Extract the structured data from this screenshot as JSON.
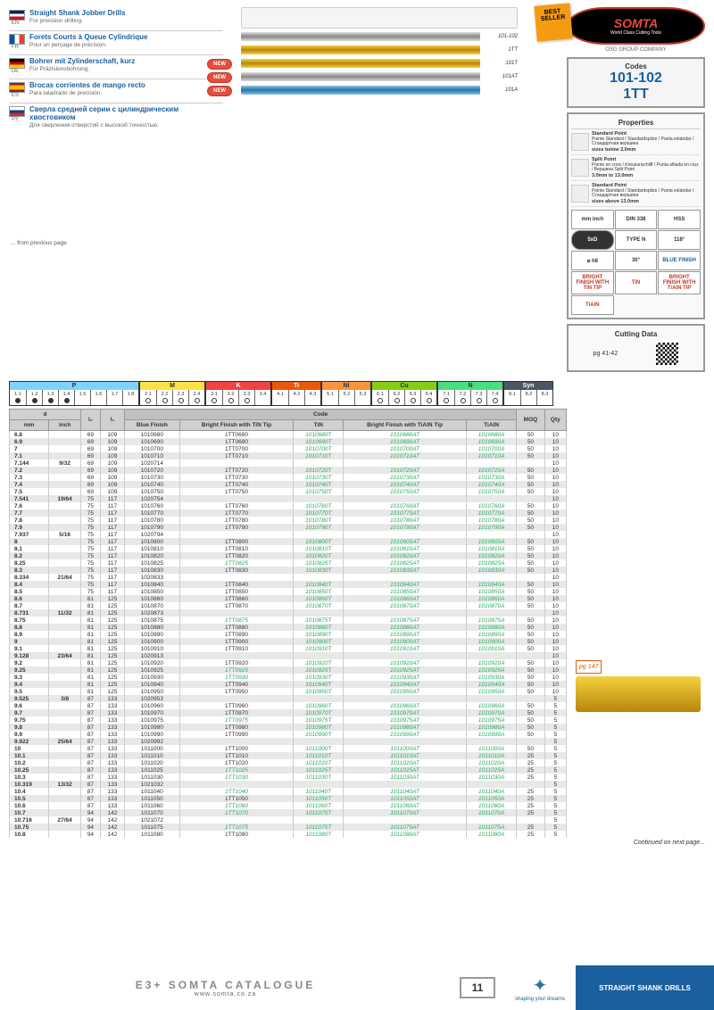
{
  "langs": [
    {
      "code": "EN",
      "flag": "en",
      "title": "Straight Shank Jobber Drills",
      "sub": "For precision drilling."
    },
    {
      "code": "FR",
      "flag": "fr",
      "title": "Forets Courts à Queue Cylindrique",
      "sub": "Pour un perçage de précision."
    },
    {
      "code": "DE",
      "flag": "de",
      "title": "Bohrer mit Zylinderschaft, kurz",
      "sub": "Für Präzisionsbohrung."
    },
    {
      "code": "ES",
      "flag": "es",
      "title": "Brocas corrientes de mango recto",
      "sub": "Para taladrado de precisión."
    },
    {
      "code": "РУ",
      "flag": "ru",
      "title": "Сверла средней серии с цилиндрическим хвостовиком",
      "sub": "Для сверления отверстий с высокой точностью."
    }
  ],
  "drills": [
    {
      "cls": "silver",
      "label": "101-102",
      "new": false,
      "diagram": true
    },
    {
      "cls": "gold",
      "label": "1TT",
      "new": false
    },
    {
      "cls": "gold",
      "label": "101T",
      "new": true
    },
    {
      "cls": "silver",
      "label": "101AT",
      "new": true
    },
    {
      "cls": "blue",
      "label": "101A",
      "new": true
    }
  ],
  "bestSeller": "BEST SELLER",
  "brand": "SOMTA",
  "brandTag": "World Class Cutting Tools",
  "osg": "OSG GROUP COMPANY",
  "codes": {
    "lbl": "Codes",
    "v1": "101-102",
    "v2": "1TT"
  },
  "propsHdr": "Properties",
  "pointTypes": [
    {
      "t": "Standard Point",
      "s": "Pointe Standard / Standardspitze / Punta estándar / Стандартная вершина",
      "r": "sizes below 3.0mm"
    },
    {
      "t": "Split Point",
      "s": "Pointe en croix / Kreuzanschliff / Punta afilada en cruz / Вершина Split Point",
      "r": "3.0mm to 13.0mm"
    },
    {
      "t": "Standard Point",
      "s": "Pointe Standard / Standardspitze / Punta estándar / Стандартная вершина",
      "r": "sizes above 13.0mm"
    }
  ],
  "propGrid": [
    [
      "mm inch",
      "DIN 338",
      "HSS"
    ],
    [
      "5xD",
      "TYPE N",
      "118°"
    ],
    [
      "⌀ h8",
      "30°",
      "BLUE FINISH"
    ],
    [
      "BRIGHT FINISH WITH TiN TIP",
      "TiN",
      "BRIGHT FINISH WITH TiAlN TIP"
    ],
    [
      "TiAlN",
      "",
      ""
    ]
  ],
  "propGridCls": [
    [
      "",
      "",
      ""
    ],
    [
      "dark",
      "",
      ""
    ],
    [
      "",
      "",
      "blue"
    ],
    [
      "red",
      "red",
      "red"
    ],
    [
      "red",
      "",
      ""
    ]
  ],
  "cutting": {
    "hdr": "Cutting Data",
    "pg": "pg 41-42"
  },
  "pgRef": "pg 147",
  "materials": [
    {
      "n": "P",
      "c": "P",
      "cells": [
        "1.1",
        "1.2",
        "1.3",
        "1.4",
        "1.5",
        "1.6",
        "1.7",
        "1.8"
      ],
      "fill": [
        1,
        1,
        1,
        1,
        0,
        0,
        0,
        0
      ]
    },
    {
      "n": "M",
      "c": "M",
      "cells": [
        "2.1",
        "2.2",
        "2.3",
        "2.4"
      ],
      "fill": [
        0,
        0,
        0,
        0
      ],
      "ring": [
        1,
        1,
        1,
        1
      ]
    },
    {
      "n": "K",
      "c": "K",
      "cells": [
        "3.1",
        "3.2",
        "3.3",
        "3.4"
      ],
      "fill": [
        0,
        0,
        0,
        0
      ],
      "ring": [
        1,
        1,
        1,
        0
      ]
    },
    {
      "n": "Ti",
      "c": "Ti",
      "cells": [
        "4.1",
        "4.2",
        "4.3"
      ],
      "fill": [
        0,
        0,
        0
      ]
    },
    {
      "n": "Ni",
      "c": "Ni",
      "cells": [
        "5.1",
        "5.2",
        "5.3"
      ],
      "fill": [
        0,
        0,
        0
      ]
    },
    {
      "n": "Cu",
      "c": "Cu",
      "cells": [
        "6.1",
        "6.2",
        "6.3",
        "6.4"
      ],
      "fill": [
        0,
        0,
        0,
        0
      ],
      "ring": [
        1,
        1,
        1,
        1
      ]
    },
    {
      "n": "N",
      "c": "N",
      "cells": [
        "7.1",
        "7.2",
        "7.3",
        "7.4"
      ],
      "fill": [
        0,
        0,
        0,
        0
      ],
      "ring": [
        1,
        1,
        1,
        1
      ]
    },
    {
      "n": "Syn",
      "c": "Syn",
      "cells": [
        "8.1",
        "8.2",
        "8.3"
      ],
      "fill": [
        0,
        0,
        0
      ]
    }
  ],
  "tableHdr": {
    "d": "d",
    "l2": "l₂",
    "l1": "l₁",
    "code": "Code",
    "moq": "MOQ",
    "qty": "Qty",
    "mm": "mm",
    "inch": "inch",
    "c1": "Blue Finish",
    "c2": "Bright Finish with TiN Tip",
    "c3": "TiN",
    "c4": "Bright Finish with TiAlN Tip",
    "c5": "TiAlN"
  },
  "prev": "... from previous page",
  "cont": "Continued on next page...",
  "rows": [
    {
      "mm": "6.8",
      "inch": "",
      "l2": 69,
      "l1": 109,
      "c1": "1010680",
      "c2": "1TT0680",
      "c3": "1010680T",
      "c4": "1010680AT",
      "c5": "1010680A",
      "moq": 50,
      "qty": 10
    },
    {
      "mm": "6.9",
      "inch": "",
      "l2": 69,
      "l1": 109,
      "c1": "1010690",
      "c2": "1TT0690",
      "c3": "1010690T",
      "c4": "1010690AT",
      "c5": "1010690A",
      "moq": 50,
      "qty": 10
    },
    {
      "mm": "7",
      "inch": "",
      "l2": 69,
      "l1": 109,
      "c1": "1010700",
      "c2": "1TT0700",
      "c3": "1010700T",
      "c4": "1010700AT",
      "c5": "1010700A",
      "moq": 50,
      "qty": 10
    },
    {
      "mm": "7.1",
      "inch": "",
      "l2": 69,
      "l1": 109,
      "c1": "1010710",
      "c2": "1TT0710",
      "c3": "1010710T",
      "c4": "1010710AT",
      "c5": "1010710A",
      "moq": 50,
      "qty": 10
    },
    {
      "mm": "7.144",
      "inch": "9/32",
      "l2": 69,
      "l1": 109,
      "c1": "1020714",
      "c2": "",
      "c3": "",
      "c4": "",
      "c5": "",
      "moq": "",
      "qty": 10
    },
    {
      "mm": "7.2",
      "inch": "",
      "l2": 69,
      "l1": 109,
      "c1": "1010720",
      "c2": "1TT0720",
      "c3": "1010720T",
      "c4": "1010720AT",
      "c5": "1010720A",
      "moq": 50,
      "qty": 10
    },
    {
      "mm": "7.3",
      "inch": "",
      "l2": 69,
      "l1": 109,
      "c1": "1010730",
      "c2": "1TT0730",
      "c3": "1010730T",
      "c4": "1010730AT",
      "c5": "1010730A",
      "moq": 50,
      "qty": 10
    },
    {
      "mm": "7.4",
      "inch": "",
      "l2": 69,
      "l1": 109,
      "c1": "1010740",
      "c2": "1TT0740",
      "c3": "1010740T",
      "c4": "1010740AT",
      "c5": "1010740A",
      "moq": 50,
      "qty": 10
    },
    {
      "mm": "7.5",
      "inch": "",
      "l2": 69,
      "l1": 109,
      "c1": "1010750",
      "c2": "1TT0750",
      "c3": "1010750T",
      "c4": "1010750AT",
      "c5": "1010750A",
      "moq": 50,
      "qty": 10
    },
    {
      "mm": "7.541",
      "inch": "19/64",
      "l2": 75,
      "l1": 117,
      "c1": "1020754",
      "c2": "",
      "c3": "",
      "c4": "",
      "c5": "",
      "moq": "",
      "qty": 10
    },
    {
      "mm": "7.6",
      "inch": "",
      "l2": 75,
      "l1": 117,
      "c1": "1010760",
      "c2": "1TT0760",
      "c3": "1010760T",
      "c4": "1010760AT",
      "c5": "1010760A",
      "moq": 50,
      "qty": 10
    },
    {
      "mm": "7.7",
      "inch": "",
      "l2": 75,
      "l1": 117,
      "c1": "1010770",
      "c2": "1TT0770",
      "c3": "1010770T",
      "c4": "1010770AT",
      "c5": "1010770A",
      "moq": 50,
      "qty": 10
    },
    {
      "mm": "7.8",
      "inch": "",
      "l2": 75,
      "l1": 117,
      "c1": "1010780",
      "c2": "1TT0780",
      "c3": "1010780T",
      "c4": "1010780AT",
      "c5": "1010780A",
      "moq": 50,
      "qty": 10
    },
    {
      "mm": "7.9",
      "inch": "",
      "l2": 75,
      "l1": 117,
      "c1": "1010790",
      "c2": "1TT0790",
      "c3": "1010790T",
      "c4": "1010790AT",
      "c5": "1010790A",
      "moq": 50,
      "qty": 10
    },
    {
      "mm": "7.937",
      "inch": "5/16",
      "l2": 75,
      "l1": 117,
      "c1": "1020794",
      "c2": "",
      "c3": "",
      "c4": "",
      "c5": "",
      "moq": "",
      "qty": 10
    },
    {
      "mm": "8",
      "inch": "",
      "l2": 75,
      "l1": 117,
      "c1": "1010800",
      "c2": "1TT0800",
      "c3": "1010800T",
      "c4": "1010800AT",
      "c5": "1010800A",
      "moq": 50,
      "qty": 10
    },
    {
      "mm": "8.1",
      "inch": "",
      "l2": 75,
      "l1": 117,
      "c1": "1010810",
      "c2": "1TT0810",
      "c3": "1010810T",
      "c4": "1010810AT",
      "c5": "1010810A",
      "moq": 50,
      "qty": 10
    },
    {
      "mm": "8.2",
      "inch": "",
      "l2": 75,
      "l1": 117,
      "c1": "1010820",
      "c2": "1TT0820",
      "c3": "1010820T",
      "c4": "1010820AT",
      "c5": "1010820A",
      "moq": 50,
      "qty": 10
    },
    {
      "mm": "8.25",
      "inch": "",
      "l2": 75,
      "l1": 117,
      "c1": "1010825",
      "c2": "1TT0825",
      "c3": "1010825T",
      "c4": "1010825AT",
      "c5": "1010825A",
      "moq": 50,
      "qty": 10,
      "g2": 1
    },
    {
      "mm": "8.3",
      "inch": "",
      "l2": 75,
      "l1": 117,
      "c1": "1010830",
      "c2": "1TT0830",
      "c3": "1010830T",
      "c4": "1010830AT",
      "c5": "1010830A",
      "moq": 50,
      "qty": 10
    },
    {
      "mm": "8.334",
      "inch": "21/64",
      "l2": 75,
      "l1": 117,
      "c1": "1020833",
      "c2": "",
      "c3": "",
      "c4": "",
      "c5": "",
      "moq": "",
      "qty": 10
    },
    {
      "mm": "8.4",
      "inch": "",
      "l2": 75,
      "l1": 117,
      "c1": "1010840",
      "c2": "1TT0840",
      "c3": "1010840T",
      "c4": "1010840AT",
      "c5": "1010840A",
      "moq": 50,
      "qty": 10
    },
    {
      "mm": "8.5",
      "inch": "",
      "l2": 75,
      "l1": 117,
      "c1": "1010850",
      "c2": "1TT0850",
      "c3": "1010850T",
      "c4": "1010850AT",
      "c5": "1010850A",
      "moq": 50,
      "qty": 10
    },
    {
      "mm": "8.6",
      "inch": "",
      "l2": 81,
      "l1": 125,
      "c1": "1010860",
      "c2": "1TT0860",
      "c3": "1010860T",
      "c4": "1010860AT",
      "c5": "1010860A",
      "moq": 50,
      "qty": 10
    },
    {
      "mm": "8.7",
      "inch": "",
      "l2": 81,
      "l1": 125,
      "c1": "1010870",
      "c2": "1TT0870",
      "c3": "1010870T",
      "c4": "1010870AT",
      "c5": "1010870A",
      "moq": 50,
      "qty": 10
    },
    {
      "mm": "8.731",
      "inch": "11/32",
      "l2": 81,
      "l1": 125,
      "c1": "1020873",
      "c2": "",
      "c3": "",
      "c4": "",
      "c5": "",
      "moq": "",
      "qty": 10
    },
    {
      "mm": "8.75",
      "inch": "",
      "l2": 81,
      "l1": 125,
      "c1": "1010875",
      "c2": "1TT0875",
      "c3": "1010875T",
      "c4": "1010875AT",
      "c5": "1010875A",
      "moq": 50,
      "qty": 10,
      "g2": 1
    },
    {
      "mm": "8.8",
      "inch": "",
      "l2": 81,
      "l1": 125,
      "c1": "1010880",
      "c2": "1TT0880",
      "c3": "1010880T",
      "c4": "1010880AT",
      "c5": "1010880A",
      "moq": 50,
      "qty": 10
    },
    {
      "mm": "8.9",
      "inch": "",
      "l2": 81,
      "l1": 125,
      "c1": "1010890",
      "c2": "1TT0890",
      "c3": "1010890T",
      "c4": "1010890AT",
      "c5": "1010890A",
      "moq": 50,
      "qty": 10
    },
    {
      "mm": "9",
      "inch": "",
      "l2": 81,
      "l1": 125,
      "c1": "1010900",
      "c2": "1TT0900",
      "c3": "1010900T",
      "c4": "1010900AT",
      "c5": "1010900A",
      "moq": 50,
      "qty": 10
    },
    {
      "mm": "9.1",
      "inch": "",
      "l2": 81,
      "l1": 125,
      "c1": "1010910",
      "c2": "1TT0910",
      "c3": "1010910T",
      "c4": "1010910AT",
      "c5": "1010910A",
      "moq": 50,
      "qty": 10
    },
    {
      "mm": "9.128",
      "inch": "23/64",
      "l2": 81,
      "l1": 125,
      "c1": "1020913",
      "c2": "",
      "c3": "",
      "c4": "",
      "c5": "",
      "moq": "",
      "qty": 10
    },
    {
      "mm": "9.2",
      "inch": "",
      "l2": 81,
      "l1": 125,
      "c1": "1010920",
      "c2": "1TT0920",
      "c3": "1010920T",
      "c4": "1010920AT",
      "c5": "1010920A",
      "moq": 50,
      "qty": 10
    },
    {
      "mm": "9.25",
      "inch": "",
      "l2": 81,
      "l1": 125,
      "c1": "1010925",
      "c2": "1TT0925",
      "c3": "1010925T",
      "c4": "1010925AT",
      "c5": "1010925A",
      "moq": 50,
      "qty": 10,
      "g2": 1
    },
    {
      "mm": "9.3",
      "inch": "",
      "l2": 81,
      "l1": 125,
      "c1": "1010930",
      "c2": "1TT0930",
      "c3": "1010930T",
      "c4": "1010930AT",
      "c5": "1010930A",
      "moq": 50,
      "qty": 10,
      "g2": 1
    },
    {
      "mm": "9.4",
      "inch": "",
      "l2": 81,
      "l1": 125,
      "c1": "1010940",
      "c2": "1TT0940",
      "c3": "1010940T",
      "c4": "1010940AT",
      "c5": "1010940A",
      "moq": 50,
      "qty": 10
    },
    {
      "mm": "9.5",
      "inch": "",
      "l2": 81,
      "l1": 125,
      "c1": "1010950",
      "c2": "1TT0950",
      "c3": "1010950T",
      "c4": "1010950AT",
      "c5": "1010950A",
      "moq": 50,
      "qty": 10
    },
    {
      "mm": "9.525",
      "inch": "3/8",
      "l2": 87,
      "l1": 133,
      "c1": "1020953",
      "c2": "",
      "c3": "",
      "c4": "",
      "c5": "",
      "moq": "",
      "qty": 5
    },
    {
      "mm": "9.6",
      "inch": "",
      "l2": 87,
      "l1": 133,
      "c1": "1010960",
      "c2": "1TT0960",
      "c3": "1010960T",
      "c4": "1010960AT",
      "c5": "1010960A",
      "moq": 50,
      "qty": 5
    },
    {
      "mm": "9.7",
      "inch": "",
      "l2": 87,
      "l1": 133,
      "c1": "1010970",
      "c2": "1TT0970",
      "c3": "1010970T",
      "c4": "1010970AT",
      "c5": "1010970A",
      "moq": 50,
      "qty": 5
    },
    {
      "mm": "9.75",
      "inch": "",
      "l2": 87,
      "l1": 133,
      "c1": "1010975",
      "c2": "1TT0975",
      "c3": "1010975T",
      "c4": "1010975AT",
      "c5": "1010975A",
      "moq": 50,
      "qty": 5,
      "g2": 1
    },
    {
      "mm": "9.8",
      "inch": "",
      "l2": 87,
      "l1": 133,
      "c1": "1010980",
      "c2": "1TT0980",
      "c3": "1010980T",
      "c4": "1010980AT",
      "c5": "1010980A",
      "moq": 50,
      "qty": 5
    },
    {
      "mm": "9.9",
      "inch": "",
      "l2": 87,
      "l1": 133,
      "c1": "1010990",
      "c2": "1TT0990",
      "c3": "1010990T",
      "c4": "1010990AT",
      "c5": "1010990A",
      "moq": 50,
      "qty": 5
    },
    {
      "mm": "9.922",
      "inch": "25/64",
      "l2": 87,
      "l1": 133,
      "c1": "1020992",
      "c2": "",
      "c3": "",
      "c4": "",
      "c5": "",
      "moq": "",
      "qty": 5
    },
    {
      "mm": "10",
      "inch": "",
      "l2": 87,
      "l1": 133,
      "c1": "1011000",
      "c2": "1TT1000",
      "c3": "1011000T",
      "c4": "1011000AT",
      "c5": "1011000A",
      "moq": 50,
      "qty": 5
    },
    {
      "mm": "10.1",
      "inch": "",
      "l2": 87,
      "l1": 133,
      "c1": "1011010",
      "c2": "1TT1010",
      "c3": "1011010T",
      "c4": "1011010AT",
      "c5": "1011010A",
      "moq": 25,
      "qty": 5
    },
    {
      "mm": "10.2",
      "inch": "",
      "l2": 87,
      "l1": 133,
      "c1": "1011020",
      "c2": "1TT1020",
      "c3": "1011020T",
      "c4": "1011020AT",
      "c5": "1011020A",
      "moq": 25,
      "qty": 5
    },
    {
      "mm": "10.25",
      "inch": "",
      "l2": 87,
      "l1": 133,
      "c1": "1011025",
      "c2": "1TT1025",
      "c3": "1011025T",
      "c4": "1011025AT",
      "c5": "1011025A",
      "moq": 25,
      "qty": 5,
      "g2": 1
    },
    {
      "mm": "10.3",
      "inch": "",
      "l2": 87,
      "l1": 133,
      "c1": "1011030",
      "c2": "1TT1030",
      "c3": "1011030T",
      "c4": "1011030AT",
      "c5": "1011030A",
      "moq": 25,
      "qty": 5,
      "g2": 1
    },
    {
      "mm": "10.319",
      "inch": "13/32",
      "l2": 87,
      "l1": 133,
      "c1": "1021032",
      "c2": "",
      "c3": "",
      "c4": "",
      "c5": "",
      "moq": "",
      "qty": 5
    },
    {
      "mm": "10.4",
      "inch": "",
      "l2": 87,
      "l1": 133,
      "c1": "1011040",
      "c2": "1TT1040",
      "c3": "1011040T",
      "c4": "1011040AT",
      "c5": "1011040A",
      "moq": 25,
      "qty": 5,
      "g2": 1
    },
    {
      "mm": "10.5",
      "inch": "",
      "l2": 87,
      "l1": 133,
      "c1": "1011050",
      "c2": "1TT1050",
      "c3": "1011050T",
      "c4": "1011050AT",
      "c5": "1011050A",
      "moq": 25,
      "qty": 5
    },
    {
      "mm": "10.6",
      "inch": "",
      "l2": 87,
      "l1": 133,
      "c1": "1011060",
      "c2": "1TT1060",
      "c3": "1011060T",
      "c4": "1011060AT",
      "c5": "1011060A",
      "moq": 25,
      "qty": 5,
      "g2": 1
    },
    {
      "mm": "10.7",
      "inch": "",
      "l2": 94,
      "l1": 142,
      "c1": "1011070",
      "c2": "1TT1070",
      "c3": "1011070T",
      "c4": "1011070AT",
      "c5": "1011070A",
      "moq": 25,
      "qty": 5,
      "g2": 1
    },
    {
      "mm": "10.716",
      "inch": "27/64",
      "l2": 94,
      "l1": 142,
      "c1": "1021072",
      "c2": "",
      "c3": "",
      "c4": "",
      "c5": "",
      "moq": "",
      "qty": 5
    },
    {
      "mm": "10.75",
      "inch": "",
      "l2": 94,
      "l1": 142,
      "c1": "1011075",
      "c2": "1TT1075",
      "c3": "1011075T",
      "c4": "1011075AT",
      "c5": "1011075A",
      "moq": 25,
      "qty": 5,
      "g2": 1
    },
    {
      "mm": "10.8",
      "inch": "",
      "l2": 94,
      "l1": 142,
      "c1": "1011080",
      "c2": "1TT1080",
      "c3": "1011080T",
      "c4": "1011080AT",
      "c5": "1011080A",
      "moq": 25,
      "qty": 5
    }
  ],
  "footer": {
    "title": "E3+ SOMTA CATALOGUE",
    "url": "www.somta.co.za",
    "page": "11",
    "osg": "shaping your dreams",
    "right": "STRAIGHT SHANK DRILLS"
  },
  "newLabel": "NEW"
}
